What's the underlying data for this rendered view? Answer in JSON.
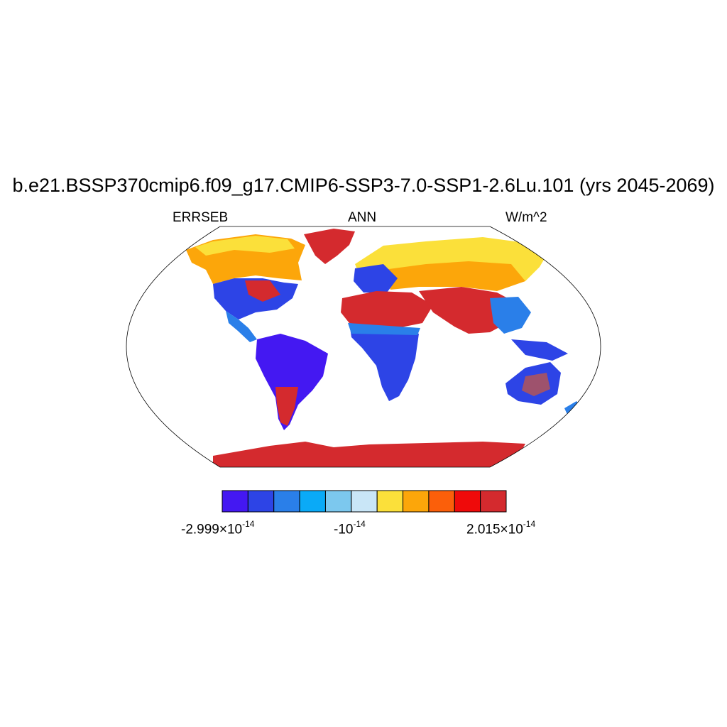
{
  "title": "b.e21.BSSP370cmip6.f09_g17.CMIP6-SSP3-7.0-SSP1-2.6Lu.101 (yrs 2045-2069)",
  "left_label": "ERRSEB",
  "center_label": "ANN",
  "right_label": "W/m^2",
  "colorbar": {
    "colors": [
      "#4418f2",
      "#2d44e6",
      "#2a7fe9",
      "#0aaaf7",
      "#7cc8ee",
      "#c9e6f7",
      "#fbe03a",
      "#fca60a",
      "#fb5f0a",
      "#ef0a0a",
      "#d42a2e"
    ],
    "labels": [
      {
        "mantissa": "-2.999",
        "exponent": "-14",
        "prefix": "×10"
      },
      {
        "mantissa": "-10",
        "exponent": "-14",
        "prefix": ""
      },
      {
        "mantissa": "2.015",
        "exponent": "-14",
        "prefix": "×10"
      }
    ]
  },
  "regions": {
    "antarctica": "#d42a2e",
    "greenland": "#d42a2e",
    "north_africa_arabia": "#d42a2e",
    "south_america": "#4418f2",
    "central_africa": "#2d44e6",
    "australia": "#2d44e6",
    "siberia": "#fbe03a",
    "canada": "#fca60a"
  }
}
